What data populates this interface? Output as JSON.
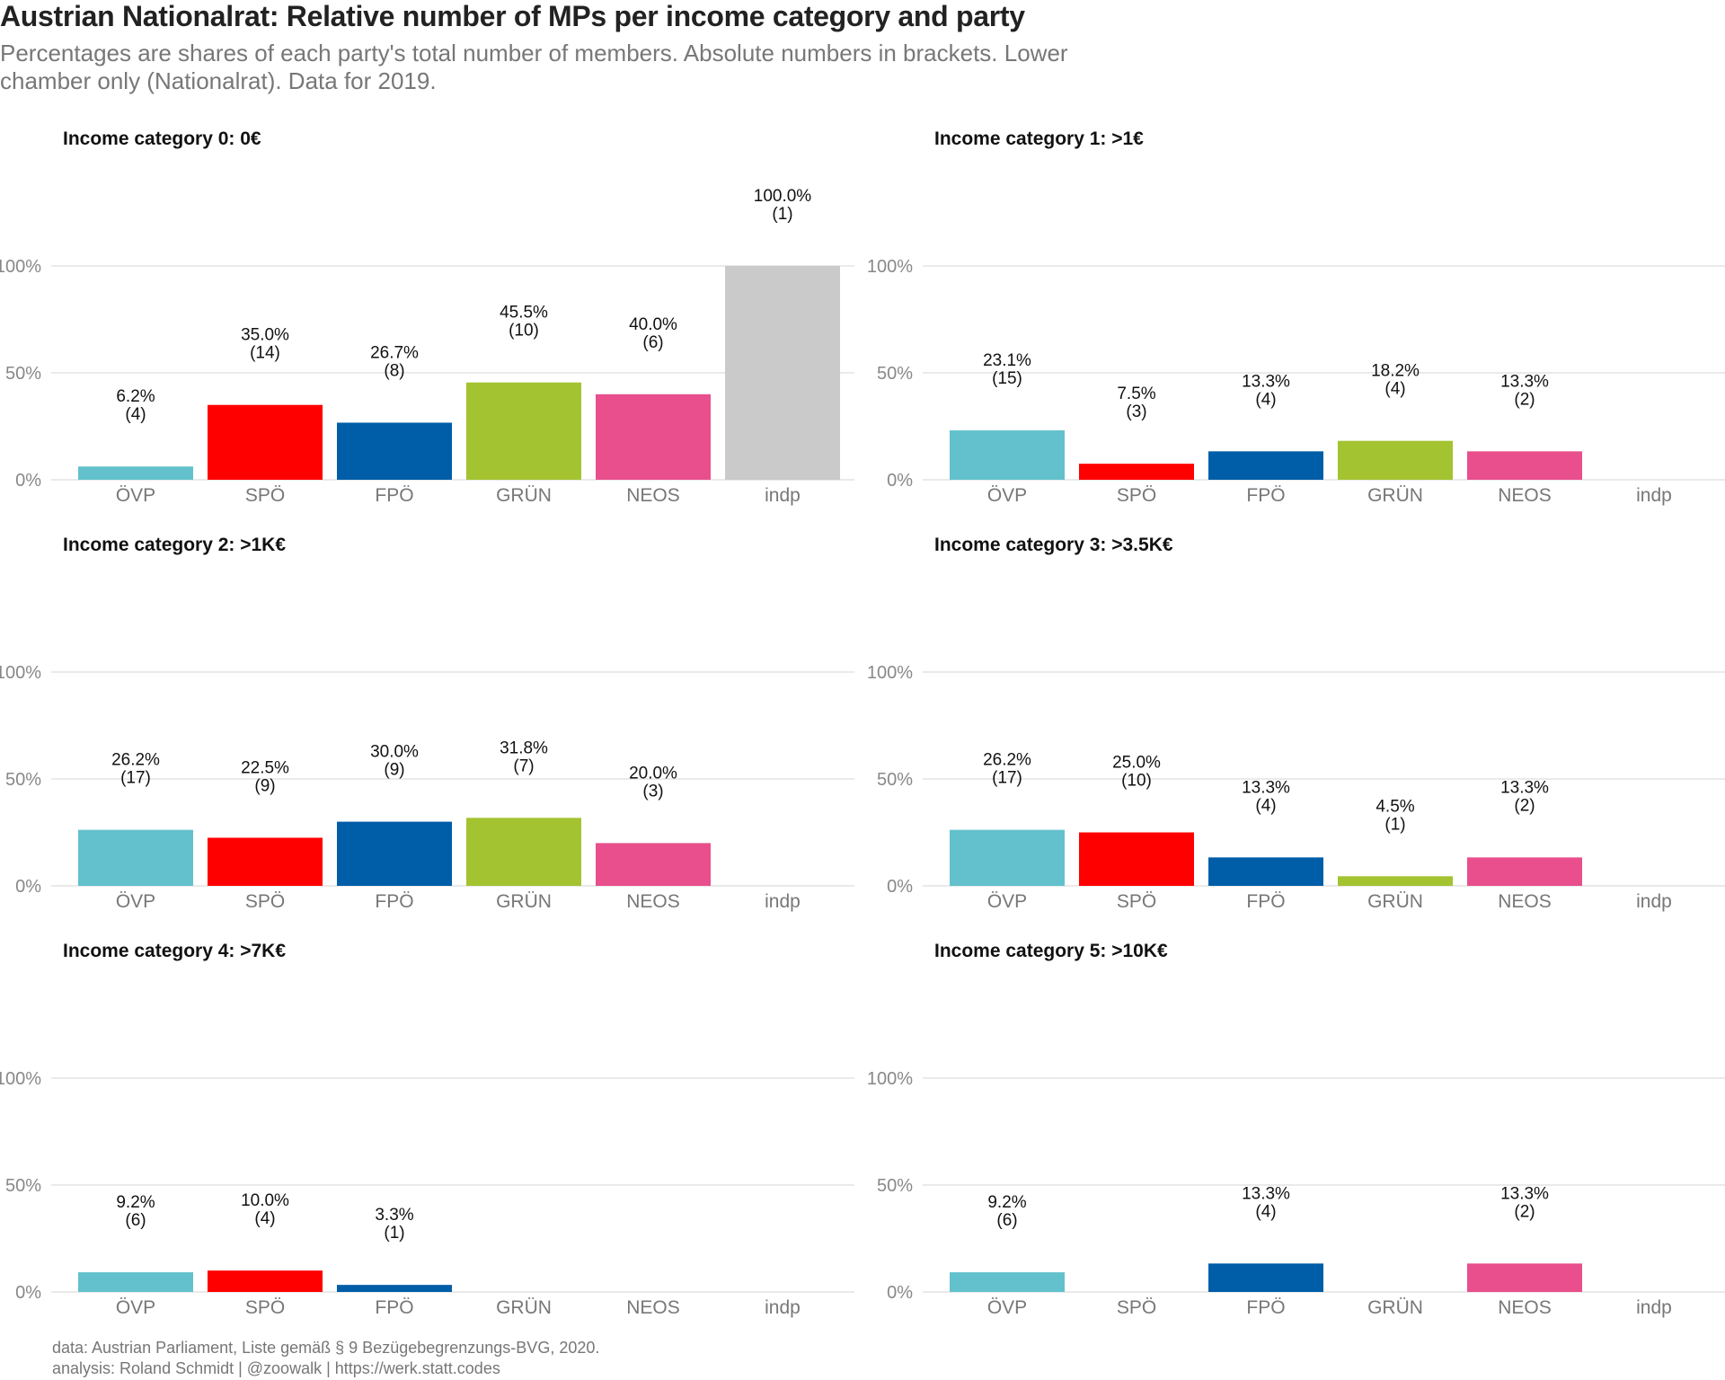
{
  "title": "Austrian Nationalrat: Relative number of MPs per income category and party",
  "subtitle": "Percentages are shares of each party's total number of members. Absolute numbers in brackets. Lower chamber only (Nationalrat). Data for 2019.",
  "caption": {
    "line1": "data: Austrian Parliament, Liste gemäß § 9 Bezügebegrenzungs-BVG, 2020.",
    "line2": "analysis: Roland Schmidt | @zoowalk | https://werk.statt.codes"
  },
  "chart_data": {
    "type": "bar",
    "categories": [
      "ÖVP",
      "SPÖ",
      "FPÖ",
      "GRÜN",
      "NEOS",
      "indp"
    ],
    "colors": {
      "ÖVP": "#62C1CC",
      "SPÖ": "#FF0000",
      "FPÖ": "#005DA8",
      "GRÜN": "#A3C330",
      "NEOS": "#E84F8C",
      "indp": "#CACACA"
    },
    "ylim": [
      0,
      100
    ],
    "yticks": [
      0,
      50,
      100
    ],
    "ytick_labels": [
      "0%",
      "50%",
      "100%"
    ],
    "grid": true,
    "panels": [
      {
        "title": "Income category 0: 0€",
        "values": [
          6.2,
          35.0,
          26.7,
          45.5,
          40.0,
          100.0
        ],
        "value_labels": [
          "6.2%",
          "35.0%",
          "26.7%",
          "45.5%",
          "40.0%",
          "100.0%"
        ],
        "counts": [
          "(4)",
          "(14)",
          "(8)",
          "(10)",
          "(6)",
          "(1)"
        ]
      },
      {
        "title": "Income category 1: >1€",
        "values": [
          23.1,
          7.5,
          13.3,
          18.2,
          13.3,
          null
        ],
        "value_labels": [
          "23.1%",
          "7.5%",
          "13.3%",
          "18.2%",
          "13.3%",
          null
        ],
        "counts": [
          "(15)",
          "(3)",
          "(4)",
          "(4)",
          "(2)",
          null
        ]
      },
      {
        "title": "Income category 2: >1K€",
        "values": [
          26.2,
          22.5,
          30.0,
          31.8,
          20.0,
          null
        ],
        "value_labels": [
          "26.2%",
          "22.5%",
          "30.0%",
          "31.8%",
          "20.0%",
          null
        ],
        "counts": [
          "(17)",
          "(9)",
          "(9)",
          "(7)",
          "(3)",
          null
        ]
      },
      {
        "title": "Income category 3: >3.5K€",
        "values": [
          26.2,
          25.0,
          13.3,
          4.5,
          13.3,
          null
        ],
        "value_labels": [
          "26.2%",
          "25.0%",
          "13.3%",
          "4.5%",
          "13.3%",
          null
        ],
        "counts": [
          "(17)",
          "(10)",
          "(4)",
          "(1)",
          "(2)",
          null
        ]
      },
      {
        "title": "Income category 4: >7K€",
        "values": [
          9.2,
          10.0,
          3.3,
          null,
          null,
          null
        ],
        "value_labels": [
          "9.2%",
          "10.0%",
          "3.3%",
          null,
          null,
          null
        ],
        "counts": [
          "(6)",
          "(4)",
          "(1)",
          null,
          null,
          null
        ]
      },
      {
        "title": "Income category 5: >10K€",
        "values": [
          9.2,
          null,
          13.3,
          null,
          13.3,
          null
        ],
        "value_labels": [
          "9.2%",
          null,
          "13.3%",
          null,
          "13.3%",
          null
        ],
        "counts": [
          "(6)",
          null,
          "(4)",
          null,
          "(2)",
          null
        ]
      }
    ]
  }
}
